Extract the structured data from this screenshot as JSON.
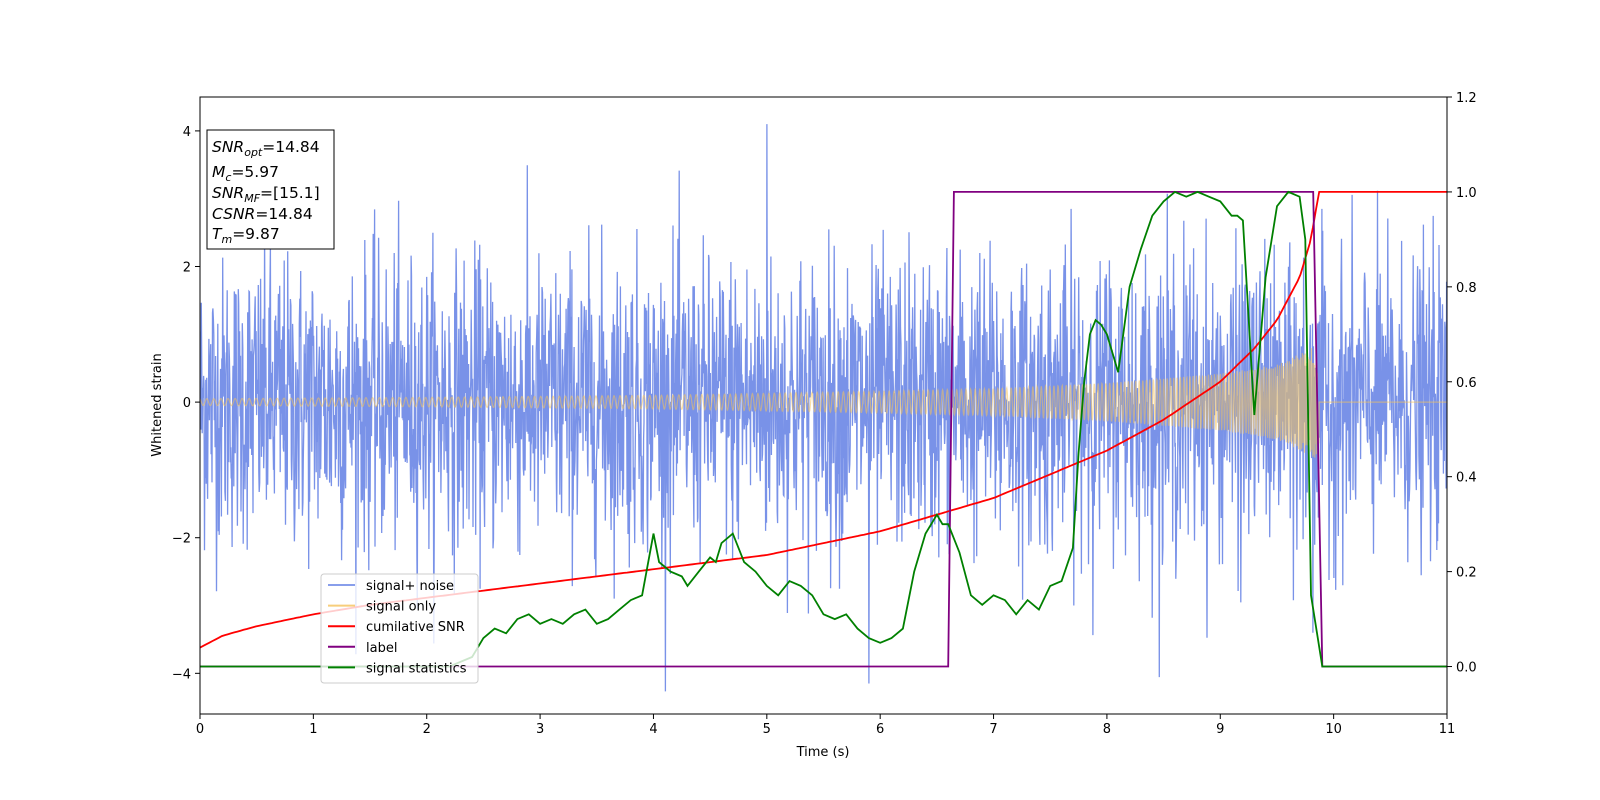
{
  "chart_data": {
    "type": "line",
    "title": "",
    "xlabel": "Time (s)",
    "ylabel": "Whitened strain",
    "xlim": [
      0,
      11
    ],
    "ylim": [
      -4.6,
      4.5
    ],
    "y2lim": [
      -0.1,
      1.2
    ],
    "x_ticks": [
      0,
      1,
      2,
      3,
      4,
      5,
      6,
      7,
      8,
      9,
      10,
      11
    ],
    "y_ticks": [
      -4,
      -2,
      0,
      2,
      4
    ],
    "y2_ticks": [
      0.0,
      0.2,
      0.4,
      0.6,
      0.8,
      1.0,
      1.2
    ],
    "grid": false,
    "legend_position": "lower-left",
    "merger_time": 9.87,
    "series": [
      {
        "name": "signal+ noise",
        "axis": "left",
        "color": "#6a86e6",
        "description": "whitened noise plus signal, approx. unit-variance with peaks near ±3, spike to 4.1 at t=5.0"
      },
      {
        "name": "signal only",
        "axis": "left",
        "color": "#f5c25a",
        "envelope": {
          "x": [
            0,
            2,
            4,
            6,
            7,
            8,
            9,
            9.5,
            9.87
          ],
          "amp": [
            0.05,
            0.07,
            0.1,
            0.16,
            0.2,
            0.28,
            0.42,
            0.55,
            0.85
          ]
        }
      },
      {
        "name": "cumilative SNR",
        "axis": "right",
        "color": "#ff0000",
        "x": [
          0,
          0.2,
          0.5,
          1,
          1.5,
          2,
          3,
          4,
          5,
          6,
          7,
          8,
          8.5,
          9,
          9.3,
          9.5,
          9.7,
          9.8,
          9.87,
          11
        ],
        "y": [
          0.04,
          0.065,
          0.085,
          0.11,
          0.13,
          0.145,
          0.175,
          0.205,
          0.235,
          0.285,
          0.355,
          0.455,
          0.52,
          0.6,
          0.67,
          0.73,
          0.82,
          0.9,
          1.0,
          1.0
        ]
      },
      {
        "name": "label",
        "axis": "right",
        "color": "#800080",
        "x": [
          0,
          6.6,
          6.65,
          9.82,
          9.9,
          11
        ],
        "y": [
          0,
          0,
          1,
          1,
          0,
          0
        ]
      },
      {
        "name": "signal statistics",
        "axis": "right",
        "color": "#008000",
        "x": [
          0,
          2.2,
          2.4,
          2.5,
          2.6,
          2.7,
          2.8,
          2.9,
          3.0,
          3.1,
          3.2,
          3.3,
          3.4,
          3.5,
          3.6,
          3.7,
          3.8,
          3.9,
          4.0,
          4.05,
          4.15,
          4.25,
          4.3,
          4.4,
          4.5,
          4.55,
          4.6,
          4.7,
          4.75,
          4.8,
          4.9,
          5.0,
          5.1,
          5.2,
          5.3,
          5.4,
          5.5,
          5.6,
          5.7,
          5.8,
          5.9,
          6.0,
          6.1,
          6.2,
          6.3,
          6.4,
          6.5,
          6.55,
          6.6,
          6.7,
          6.8,
          6.9,
          7.0,
          7.1,
          7.2,
          7.3,
          7.4,
          7.5,
          7.6,
          7.7,
          7.75,
          7.8,
          7.85,
          7.9,
          7.95,
          8.0,
          8.1,
          8.2,
          8.3,
          8.4,
          8.5,
          8.6,
          8.7,
          8.8,
          8.9,
          9.0,
          9.1,
          9.15,
          9.2,
          9.3,
          9.4,
          9.5,
          9.6,
          9.7,
          9.75,
          9.8,
          9.9,
          10.0,
          11.0
        ],
        "y": [
          0.0,
          0.0,
          0.02,
          0.06,
          0.08,
          0.07,
          0.1,
          0.11,
          0.09,
          0.1,
          0.09,
          0.11,
          0.12,
          0.09,
          0.1,
          0.12,
          0.14,
          0.15,
          0.28,
          0.22,
          0.2,
          0.19,
          0.17,
          0.2,
          0.23,
          0.22,
          0.26,
          0.28,
          0.25,
          0.22,
          0.2,
          0.17,
          0.15,
          0.18,
          0.17,
          0.15,
          0.11,
          0.1,
          0.11,
          0.08,
          0.06,
          0.05,
          0.06,
          0.08,
          0.2,
          0.28,
          0.32,
          0.3,
          0.3,
          0.24,
          0.15,
          0.13,
          0.15,
          0.14,
          0.11,
          0.14,
          0.12,
          0.17,
          0.18,
          0.25,
          0.45,
          0.6,
          0.7,
          0.73,
          0.72,
          0.7,
          0.62,
          0.8,
          0.88,
          0.95,
          0.98,
          1.0,
          0.99,
          1.0,
          0.99,
          0.98,
          0.95,
          0.95,
          0.94,
          0.53,
          0.82,
          0.97,
          1.0,
          0.99,
          0.9,
          0.15,
          0.0,
          0.0,
          0.0
        ]
      }
    ]
  },
  "info_box": {
    "snr_opt_label": "SNR",
    "snr_opt_sub": "opt",
    "snr_opt_value": "=14.84",
    "mc_label": "M",
    "mc_sub": "c",
    "mc_value": "=5.97",
    "snr_mf_label": "SNR",
    "snr_mf_sub": "MF",
    "snr_mf_value": "=[15.1]",
    "csnr_label": "CSNR",
    "csnr_value": "=14.84",
    "tm_label": "T",
    "tm_sub": "m",
    "tm_value": "=9.87"
  }
}
